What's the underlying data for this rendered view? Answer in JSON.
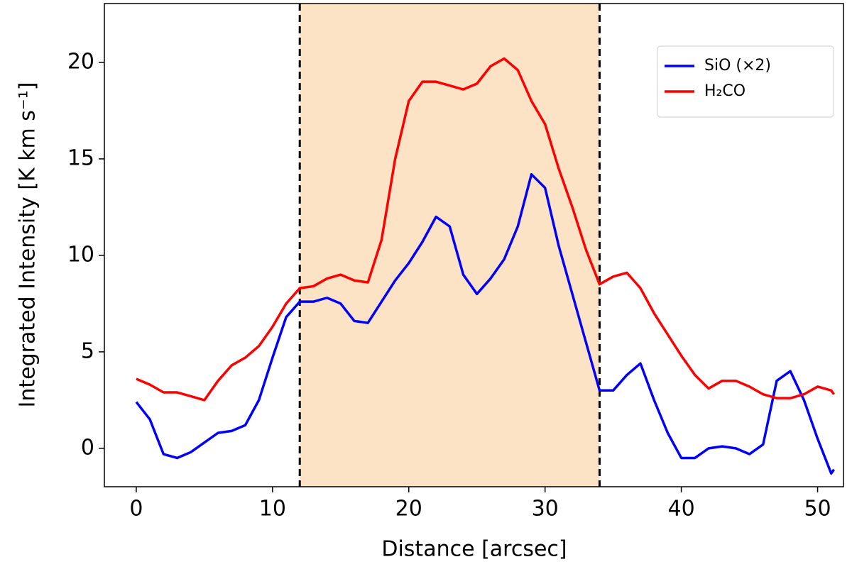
{
  "chart_data": {
    "type": "line",
    "x_label": "Distance [arcsec]",
    "y_label": "Integrated Intensity [K km s⁻¹]",
    "x": [
      0,
      1,
      2,
      3,
      4,
      5,
      6,
      7,
      8,
      9,
      10,
      11,
      12,
      13,
      14,
      15,
      16,
      17,
      18,
      19,
      20,
      21,
      22,
      23,
      24,
      25,
      26,
      27,
      28,
      29,
      30,
      31,
      32,
      33,
      34,
      35,
      36,
      37,
      38,
      39,
      40,
      41,
      42,
      43,
      44,
      45,
      46,
      47,
      48,
      49,
      50,
      51,
      51.2
    ],
    "series": [
      {
        "name": "SiO (×2)",
        "color": "#0000ff",
        "values": [
          2.4,
          1.5,
          -0.3,
          -0.5,
          -0.2,
          0.3,
          0.8,
          0.9,
          1.2,
          2.5,
          4.7,
          6.8,
          7.6,
          7.6,
          7.8,
          7.5,
          6.6,
          6.5,
          7.6,
          8.7,
          9.6,
          10.7,
          12.0,
          11.5,
          9.0,
          8.0,
          8.8,
          9.8,
          11.5,
          14.2,
          13.5,
          10.5,
          8.0,
          5.5,
          3.0,
          3.0,
          3.8,
          4.4,
          2.5,
          0.8,
          -0.5,
          -0.5,
          0.0,
          0.1,
          0.0,
          -0.3,
          0.2,
          3.5,
          4.0,
          2.5,
          0.5,
          -1.3,
          -1.1
        ]
      },
      {
        "name": "H₂CO",
        "color": "#ff0000",
        "values": [
          3.6,
          3.3,
          2.9,
          2.9,
          2.7,
          2.5,
          3.5,
          4.3,
          4.7,
          5.3,
          6.3,
          7.5,
          8.3,
          8.4,
          8.8,
          9.0,
          8.7,
          8.6,
          10.8,
          15.0,
          18.0,
          19.0,
          19.0,
          18.8,
          18.6,
          18.9,
          19.8,
          20.2,
          19.6,
          18.0,
          16.8,
          14.5,
          12.5,
          10.3,
          8.5,
          8.9,
          9.1,
          8.3,
          7.0,
          5.9,
          4.8,
          3.8,
          3.1,
          3.5,
          3.5,
          3.2,
          2.8,
          2.6,
          2.6,
          2.8,
          3.2,
          3.0,
          2.8
        ]
      }
    ],
    "vspan": [
      12,
      34
    ],
    "vspan_color": "#fde3c6",
    "xlim": [
      -2.34,
      51.9
    ],
    "ylim": [
      -1.99,
      23.05
    ],
    "xticks": [
      0,
      10,
      20,
      30,
      40,
      50
    ],
    "yticks": [
      0,
      5,
      10,
      15,
      20
    ],
    "legend": "upper right"
  }
}
